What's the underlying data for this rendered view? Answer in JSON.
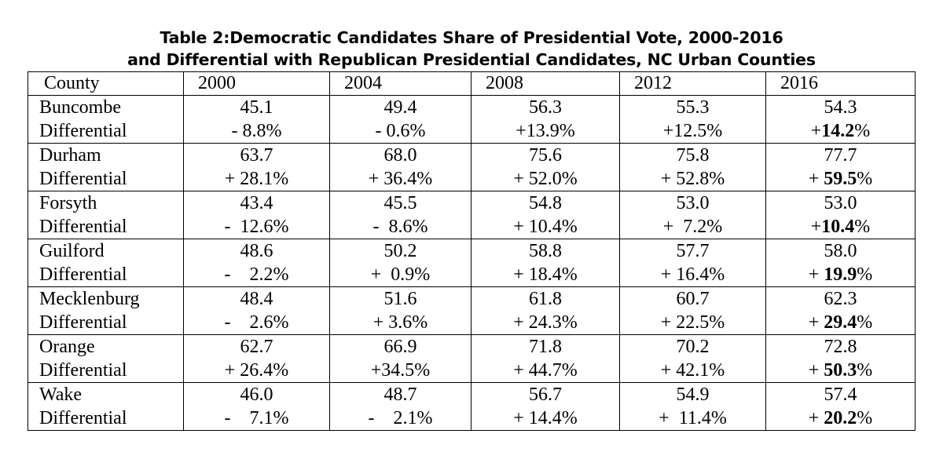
{
  "title": {
    "line1": "Table 2:Democratic Candidates Share of Presidential Vote, 2000-2016",
    "line2": "and Differential with Republican Presidential Candidates, NC Urban Counties"
  },
  "table": {
    "headers": [
      "County",
      "2000",
      "2004",
      "2008",
      "2012",
      "2016"
    ],
    "differential_label": "Differential",
    "rows": [
      {
        "county": "Buncombe",
        "shares": [
          "45.1",
          "49.4",
          "56.3",
          "55.3",
          "54.3"
        ],
        "diffs": [
          {
            "sign": "- ",
            "num": "8.8%"
          },
          {
            "sign": "- ",
            "num": "0.6%"
          },
          {
            "sign": "+",
            "num": "13.9%"
          },
          {
            "sign": "+",
            "num": "12.5%"
          },
          {
            "sign": "+",
            "num": "14.2",
            "suffix": "%"
          }
        ]
      },
      {
        "county": "Durham",
        "shares": [
          "63.7",
          "68.0",
          "75.6",
          "75.8",
          "77.7"
        ],
        "diffs": [
          {
            "sign": "+ ",
            "num": "28.1%"
          },
          {
            "sign": "+ ",
            "num": "36.4%"
          },
          {
            "sign": "+ ",
            "num": "52.0%"
          },
          {
            "sign": "+ ",
            "num": "52.8%"
          },
          {
            "sign": "+ ",
            "num": "59.5",
            "suffix": "%"
          }
        ]
      },
      {
        "county": "Forsyth",
        "shares": [
          "43.4",
          "45.5",
          "54.8",
          "53.0",
          "53.0"
        ],
        "diffs": [
          {
            "sign": "-  ",
            "num": "12.6%"
          },
          {
            "sign": "-  ",
            "num": "8.6%"
          },
          {
            "sign": "+ ",
            "num": "10.4%"
          },
          {
            "sign": "+  ",
            "num": "7.2%"
          },
          {
            "sign": "+",
            "num": "10.4",
            "suffix": "%"
          }
        ]
      },
      {
        "county": "Guilford",
        "shares": [
          "48.6",
          "50.2",
          "58.8",
          "57.7",
          "58.0"
        ],
        "diffs": [
          {
            "sign": "-    ",
            "num": "2.2%"
          },
          {
            "sign": "+  ",
            "num": "0.9%"
          },
          {
            "sign": "+ ",
            "num": "18.4%"
          },
          {
            "sign": "+ ",
            "num": "16.4%"
          },
          {
            "sign": "+ ",
            "num": "19.9",
            "suffix": "%"
          }
        ]
      },
      {
        "county": "Mecklenburg",
        "shares": [
          "48.4",
          "51.6",
          "61.8",
          "60.7",
          "62.3"
        ],
        "diffs": [
          {
            "sign": "-    ",
            "num": "2.6%"
          },
          {
            "sign": "+ ",
            "num": "3.6%"
          },
          {
            "sign": "+ ",
            "num": "24.3%"
          },
          {
            "sign": "+ ",
            "num": "22.5%"
          },
          {
            "sign": "+ ",
            "num": "29.4",
            "suffix": "%"
          }
        ]
      },
      {
        "county": "Orange",
        "shares": [
          "62.7",
          "66.9",
          "71.8",
          "70.2",
          "72.8"
        ],
        "diffs": [
          {
            "sign": "+ ",
            "num": "26.4%"
          },
          {
            "sign": "+",
            "num": "34.5%"
          },
          {
            "sign": "+ ",
            "num": "44.7%"
          },
          {
            "sign": "+ ",
            "num": "42.1%"
          },
          {
            "sign": "+ ",
            "num": "50.3",
            "suffix": "%"
          }
        ]
      },
      {
        "county": "Wake",
        "shares": [
          "46.0",
          "48.7",
          "56.7",
          "54.9",
          "57.4"
        ],
        "diffs": [
          {
            "sign": "-    ",
            "num": "7.1%"
          },
          {
            "sign": "-    ",
            "num": "2.1%"
          },
          {
            "sign": "+ ",
            "num": "14.4%"
          },
          {
            "sign": "+  ",
            "num": "11.4%"
          },
          {
            "sign": "+ ",
            "num": "20.2",
            "suffix": "%"
          }
        ]
      }
    ]
  }
}
